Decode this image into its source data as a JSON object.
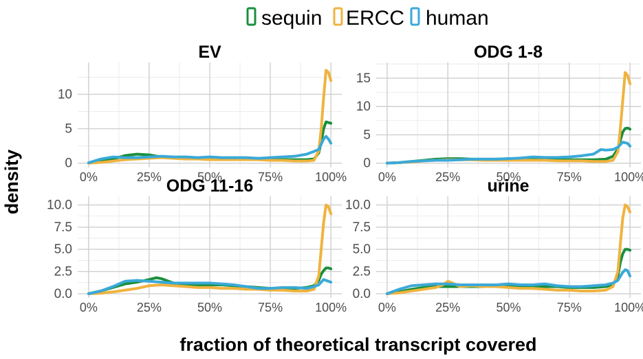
{
  "legend_items": [
    {
      "label": "sequin",
      "color": "#1a8f3c"
    },
    {
      "label": "ERCC",
      "color": "#efb33f"
    },
    {
      "label": "human",
      "color": "#3aa9d8"
    }
  ],
  "xlabel": "fraction of theoretical transcript covered",
  "ylabel": "density",
  "chart_data": [
    {
      "type": "line",
      "title": "EV",
      "xlim": [
        0,
        1
      ],
      "ylim": [
        0,
        14
      ],
      "xticks": [
        0,
        0.25,
        0.5,
        0.75,
        1
      ],
      "xticklabels": [
        "0%",
        "25%",
        "50%",
        "75%",
        "100%"
      ],
      "yticks": [
        0,
        5,
        10
      ],
      "yticklabels": [
        "0",
        "5",
        "10"
      ],
      "series": [
        {
          "name": "sequin",
          "color": "#1a8f3c",
          "x": [
            0,
            0.05,
            0.1,
            0.15,
            0.2,
            0.25,
            0.3,
            0.35,
            0.4,
            0.45,
            0.5,
            0.55,
            0.6,
            0.65,
            0.7,
            0.75,
            0.8,
            0.85,
            0.9,
            0.93,
            0.95,
            0.96,
            0.97,
            0.98,
            0.99,
            1.0
          ],
          "y": [
            0.05,
            0.3,
            0.6,
            1.1,
            1.3,
            1.2,
            0.9,
            0.8,
            0.7,
            0.7,
            0.7,
            0.6,
            0.6,
            0.6,
            0.6,
            0.5,
            0.5,
            0.5,
            0.5,
            0.6,
            1.5,
            3.0,
            5.0,
            6.0,
            5.9,
            5.8
          ]
        },
        {
          "name": "ERCC",
          "color": "#efb33f",
          "x": [
            0,
            0.05,
            0.1,
            0.15,
            0.2,
            0.25,
            0.3,
            0.35,
            0.4,
            0.45,
            0.5,
            0.55,
            0.6,
            0.65,
            0.7,
            0.75,
            0.8,
            0.85,
            0.9,
            0.93,
            0.95,
            0.96,
            0.97,
            0.98,
            0.99,
            1.0
          ],
          "y": [
            0,
            0.1,
            0.3,
            0.5,
            0.6,
            0.7,
            0.8,
            0.7,
            0.6,
            0.6,
            0.5,
            0.5,
            0.5,
            0.5,
            0.5,
            0.4,
            0.4,
            0.3,
            0.3,
            0.4,
            1.8,
            5.0,
            9.5,
            13.5,
            13.2,
            12.0
          ]
        },
        {
          "name": "human",
          "color": "#3aa9d8",
          "x": [
            0,
            0.05,
            0.1,
            0.15,
            0.2,
            0.25,
            0.3,
            0.35,
            0.4,
            0.45,
            0.5,
            0.55,
            0.6,
            0.65,
            0.7,
            0.75,
            0.8,
            0.85,
            0.9,
            0.93,
            0.95,
            0.97,
            0.98,
            0.99,
            1.0
          ],
          "y": [
            0.05,
            0.6,
            0.9,
            0.8,
            0.8,
            0.9,
            1.0,
            0.9,
            0.9,
            0.8,
            0.9,
            0.8,
            0.8,
            0.8,
            0.7,
            0.8,
            0.9,
            1.0,
            1.3,
            1.7,
            2.0,
            3.5,
            3.9,
            3.5,
            2.9
          ]
        }
      ]
    },
    {
      "type": "line",
      "title": "ODG 1-8",
      "xlim": [
        0,
        1
      ],
      "ylim": [
        0,
        17
      ],
      "xticks": [
        0,
        0.25,
        0.5,
        0.75,
        1
      ],
      "xticklabels": [
        "0%",
        "25%",
        "50%",
        "75%",
        "100%"
      ],
      "yticks": [
        0,
        5,
        10,
        15
      ],
      "yticklabels": [
        "0",
        "5",
        "10",
        "15"
      ],
      "series": [
        {
          "name": "sequin",
          "color": "#1a8f3c",
          "x": [
            0,
            0.05,
            0.1,
            0.15,
            0.2,
            0.25,
            0.3,
            0.35,
            0.4,
            0.45,
            0.5,
            0.55,
            0.6,
            0.65,
            0.7,
            0.75,
            0.8,
            0.85,
            0.9,
            0.93,
            0.95,
            0.96,
            0.97,
            0.98,
            0.99,
            1.0
          ],
          "y": [
            0,
            0.1,
            0.3,
            0.5,
            0.7,
            0.8,
            0.8,
            0.7,
            0.7,
            0.7,
            0.8,
            0.8,
            0.7,
            0.7,
            0.6,
            0.6,
            0.6,
            0.6,
            0.7,
            1.2,
            2.5,
            4.0,
            5.5,
            6.1,
            6.2,
            6.0
          ]
        },
        {
          "name": "ERCC",
          "color": "#efb33f",
          "x": [
            0,
            0.05,
            0.1,
            0.15,
            0.2,
            0.25,
            0.3,
            0.35,
            0.4,
            0.45,
            0.5,
            0.55,
            0.6,
            0.65,
            0.7,
            0.75,
            0.8,
            0.85,
            0.9,
            0.93,
            0.95,
            0.96,
            0.97,
            0.98,
            0.99,
            1.0
          ],
          "y": [
            0,
            0.1,
            0.2,
            0.4,
            0.5,
            0.6,
            0.6,
            0.6,
            0.5,
            0.5,
            0.5,
            0.5,
            0.5,
            0.5,
            0.4,
            0.4,
            0.4,
            0.3,
            0.3,
            0.5,
            2.0,
            6.0,
            11.0,
            16.0,
            15.5,
            14.0
          ]
        },
        {
          "name": "human",
          "color": "#3aa9d8",
          "x": [
            0,
            0.05,
            0.1,
            0.15,
            0.2,
            0.25,
            0.3,
            0.35,
            0.4,
            0.45,
            0.5,
            0.55,
            0.6,
            0.65,
            0.7,
            0.75,
            0.8,
            0.85,
            0.88,
            0.9,
            0.93,
            0.95,
            0.97,
            0.99,
            1.0
          ],
          "y": [
            0,
            0.1,
            0.3,
            0.4,
            0.5,
            0.5,
            0.6,
            0.7,
            0.7,
            0.7,
            0.8,
            0.9,
            1.1,
            1.0,
            1.0,
            1.1,
            1.3,
            1.6,
            2.4,
            2.3,
            2.4,
            2.8,
            3.7,
            3.5,
            3.0
          ]
        }
      ]
    },
    {
      "type": "line",
      "title": "ODG 11-16",
      "xlim": [
        0,
        1
      ],
      "ylim": [
        0,
        10.5
      ],
      "xticks": [
        0,
        0.25,
        0.5,
        0.75,
        1
      ],
      "xticklabels": [
        "0%",
        "25%",
        "50%",
        "75%",
        "100%"
      ],
      "yticks": [
        0,
        2.5,
        5,
        7.5,
        10
      ],
      "yticklabels": [
        "0.0",
        "2.5",
        "5.0",
        "7.5",
        "10.0"
      ],
      "series": [
        {
          "name": "sequin",
          "color": "#1a8f3c",
          "x": [
            0,
            0.05,
            0.1,
            0.15,
            0.2,
            0.25,
            0.28,
            0.3,
            0.35,
            0.4,
            0.45,
            0.5,
            0.55,
            0.6,
            0.65,
            0.7,
            0.75,
            0.8,
            0.85,
            0.9,
            0.93,
            0.95,
            0.96,
            0.97,
            0.98,
            0.99,
            1.0
          ],
          "y": [
            0,
            0.3,
            0.7,
            1.1,
            1.3,
            1.6,
            1.8,
            1.7,
            1.2,
            1.1,
            1.0,
            1.0,
            1.0,
            0.9,
            0.8,
            0.7,
            0.6,
            0.6,
            0.6,
            0.7,
            0.9,
            1.5,
            2.2,
            2.6,
            2.9,
            2.9,
            2.8
          ]
        },
        {
          "name": "ERCC",
          "color": "#efb33f",
          "x": [
            0,
            0.05,
            0.1,
            0.15,
            0.2,
            0.25,
            0.3,
            0.35,
            0.4,
            0.45,
            0.5,
            0.55,
            0.6,
            0.65,
            0.7,
            0.75,
            0.8,
            0.85,
            0.9,
            0.93,
            0.95,
            0.96,
            0.97,
            0.98,
            0.99,
            1.0
          ],
          "y": [
            0,
            0.05,
            0.2,
            0.4,
            0.6,
            0.9,
            1.0,
            0.9,
            0.8,
            0.7,
            0.7,
            0.6,
            0.6,
            0.5,
            0.5,
            0.4,
            0.4,
            0.3,
            0.3,
            0.5,
            2.0,
            5.0,
            8.0,
            10.0,
            9.8,
            9.0
          ]
        },
        {
          "name": "human",
          "color": "#3aa9d8",
          "x": [
            0,
            0.05,
            0.1,
            0.15,
            0.2,
            0.25,
            0.3,
            0.35,
            0.4,
            0.45,
            0.5,
            0.55,
            0.6,
            0.65,
            0.7,
            0.75,
            0.8,
            0.85,
            0.9,
            0.93,
            0.95,
            0.97,
            0.99,
            1.0
          ],
          "y": [
            0,
            0.3,
            0.8,
            1.4,
            1.5,
            1.4,
            1.3,
            1.2,
            1.2,
            1.2,
            1.2,
            1.1,
            1.0,
            0.8,
            0.6,
            0.6,
            0.7,
            0.7,
            0.6,
            0.8,
            1.0,
            1.6,
            1.4,
            1.3
          ]
        }
      ]
    },
    {
      "type": "line",
      "title": "urine",
      "xlim": [
        0,
        1
      ],
      "ylim": [
        0,
        10.5
      ],
      "xticks": [
        0,
        0.25,
        0.5,
        0.75,
        1
      ],
      "xticklabels": [
        "0%",
        "25%",
        "50%",
        "75%",
        "100%"
      ],
      "yticks": [
        0,
        2.5,
        5,
        7.5,
        10
      ],
      "yticklabels": [
        "0.0",
        "2.5",
        "5.0",
        "7.5",
        "10.0"
      ],
      "series": [
        {
          "name": "sequin",
          "color": "#1a8f3c",
          "x": [
            0,
            0.05,
            0.1,
            0.15,
            0.2,
            0.25,
            0.3,
            0.35,
            0.4,
            0.45,
            0.5,
            0.55,
            0.6,
            0.65,
            0.7,
            0.75,
            0.8,
            0.85,
            0.9,
            0.93,
            0.95,
            0.96,
            0.97,
            0.98,
            0.99,
            1.0
          ],
          "y": [
            0,
            0.2,
            0.5,
            0.7,
            0.8,
            0.8,
            0.8,
            0.8,
            0.8,
            0.8,
            0.9,
            0.8,
            0.8,
            0.8,
            0.8,
            0.7,
            0.7,
            0.7,
            0.8,
            1.0,
            2.0,
            3.5,
            4.5,
            5.0,
            5.0,
            4.9
          ]
        },
        {
          "name": "ERCC",
          "color": "#efb33f",
          "x": [
            0,
            0.05,
            0.1,
            0.15,
            0.2,
            0.23,
            0.25,
            0.27,
            0.3,
            0.35,
            0.4,
            0.45,
            0.5,
            0.55,
            0.6,
            0.65,
            0.7,
            0.75,
            0.8,
            0.85,
            0.9,
            0.93,
            0.95,
            0.96,
            0.97,
            0.98,
            0.99,
            1.0
          ],
          "y": [
            0,
            0.1,
            0.3,
            0.5,
            0.7,
            1.0,
            1.4,
            1.2,
            0.8,
            0.9,
            0.8,
            0.8,
            0.7,
            0.6,
            0.6,
            0.5,
            0.4,
            0.4,
            0.3,
            0.3,
            0.4,
            0.8,
            2.5,
            5.5,
            8.5,
            10.0,
            9.8,
            9.2
          ]
        },
        {
          "name": "human",
          "color": "#3aa9d8",
          "x": [
            0,
            0.05,
            0.1,
            0.15,
            0.2,
            0.25,
            0.3,
            0.35,
            0.4,
            0.45,
            0.5,
            0.55,
            0.6,
            0.65,
            0.7,
            0.75,
            0.8,
            0.85,
            0.9,
            0.93,
            0.95,
            0.97,
            0.98,
            0.99,
            1.0
          ],
          "y": [
            0,
            0.5,
            0.9,
            1.0,
            1.1,
            1.1,
            1.0,
            1.0,
            1.0,
            1.0,
            1.1,
            1.0,
            1.0,
            1.1,
            0.9,
            0.8,
            0.8,
            0.9,
            1.0,
            1.2,
            1.5,
            2.4,
            2.7,
            2.6,
            2.0
          ]
        }
      ]
    }
  ]
}
